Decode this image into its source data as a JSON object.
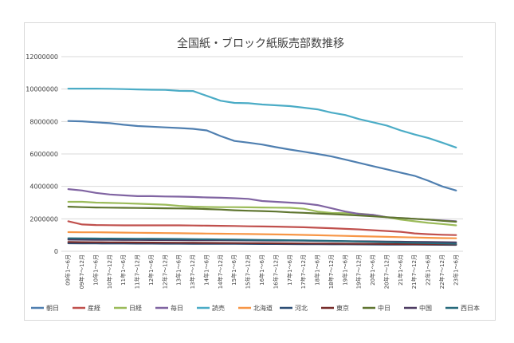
{
  "chart_data": {
    "type": "line",
    "title": "全国紙・ブロック紙販売部数推移",
    "xlabel": "",
    "ylabel": "",
    "ylim": [
      0,
      12000000
    ],
    "yticks": [
      0,
      2000000,
      4000000,
      6000000,
      8000000,
      10000000,
      12000000
    ],
    "ytick_labels": [
      "0",
      "2000000",
      "4000000",
      "6000000",
      "8000000",
      "10000000",
      "12000000"
    ],
    "grid": true,
    "legend_position": "bottom",
    "categories": [
      "09年1～6月",
      "09年7～12月",
      "10年1～6月",
      "10年7～12月",
      "11年1～6月",
      "11年7～12月",
      "12年1～6月",
      "12年7～12月",
      "13年1～6月",
      "13年7～12月",
      "14年1～6月",
      "14年7～12月",
      "15年1～6月",
      "15年7～12月",
      "16年1～6月",
      "16年7～12月",
      "17年1～6月",
      "17年7～12月",
      "18年1～6月",
      "18年7～12月",
      "19年1～6月",
      "19年7～12月",
      "20年1～6月",
      "20年7～12月",
      "21年1～6月",
      "21年7～12月",
      "22年1～6月",
      "22年7～12月",
      "23年1～6月"
    ],
    "series": [
      {
        "name": "朝日",
        "color": "#4f7fb0",
        "values": [
          8030000,
          8010000,
          7950000,
          7900000,
          7800000,
          7720000,
          7680000,
          7640000,
          7600000,
          7550000,
          7450000,
          7100000,
          6800000,
          6700000,
          6580000,
          6420000,
          6270000,
          6140000,
          6000000,
          5850000,
          5650000,
          5450000,
          5250000,
          5050000,
          4850000,
          4650000,
          4350000,
          4000000,
          3750000
        ]
      },
      {
        "name": "産経",
        "color": "#c0504d",
        "values": [
          1850000,
          1650000,
          1620000,
          1610000,
          1600000,
          1600000,
          1600000,
          1600000,
          1600000,
          1590000,
          1580000,
          1570000,
          1560000,
          1540000,
          1530000,
          1520000,
          1500000,
          1480000,
          1450000,
          1420000,
          1380000,
          1350000,
          1300000,
          1250000,
          1200000,
          1100000,
          1050000,
          1020000,
          1000000
        ]
      },
      {
        "name": "日経",
        "color": "#9bbb59",
        "values": [
          3050000,
          3050000,
          3000000,
          2980000,
          2960000,
          2930000,
          2900000,
          2870000,
          2800000,
          2750000,
          2730000,
          2720000,
          2720000,
          2710000,
          2700000,
          2690000,
          2680000,
          2620000,
          2450000,
          2360000,
          2350000,
          2320000,
          2250000,
          2100000,
          1950000,
          1850000,
          1750000,
          1680000,
          1600000
        ]
      },
      {
        "name": "毎日",
        "color": "#8064a2",
        "values": [
          3830000,
          3750000,
          3600000,
          3500000,
          3450000,
          3400000,
          3400000,
          3380000,
          3370000,
          3350000,
          3320000,
          3300000,
          3270000,
          3230000,
          3100000,
          3050000,
          3000000,
          2950000,
          2850000,
          2650000,
          2450000,
          2300000,
          2250000,
          2100000,
          2050000,
          2000000,
          1950000,
          1900000,
          1850000
        ]
      },
      {
        "name": "読売",
        "color": "#4bacc6",
        "values": [
          10030000,
          10030000,
          10030000,
          10020000,
          10000000,
          9980000,
          9960000,
          9950000,
          9890000,
          9880000,
          9580000,
          9280000,
          9150000,
          9130000,
          9050000,
          9000000,
          8950000,
          8850000,
          8750000,
          8550000,
          8400000,
          8150000,
          7950000,
          7750000,
          7450000,
          7200000,
          6980000,
          6700000,
          6400000
        ]
      },
      {
        "name": "北海道",
        "color": "#f79646",
        "values": [
          1180000,
          1170000,
          1170000,
          1160000,
          1150000,
          1140000,
          1130000,
          1120000,
          1110000,
          1100000,
          1090000,
          1080000,
          1070000,
          1060000,
          1050000,
          1040000,
          1030000,
          1010000,
          990000,
          970000,
          950000,
          930000,
          910000,
          890000,
          870000,
          850000,
          830000,
          810000,
          800000
        ]
      },
      {
        "name": "河北",
        "color": "#2c4d75",
        "values": [
          490000,
          485000,
          480000,
          478000,
          475000,
          472000,
          470000,
          468000,
          465000,
          462000,
          460000,
          458000,
          455000,
          452000,
          450000,
          446000,
          442000,
          438000,
          434000,
          430000,
          426000,
          422000,
          418000,
          414000,
          410000,
          406000,
          402000,
          398000,
          395000
        ]
      },
      {
        "name": "東京",
        "color": "#772c2a",
        "values": [
          570000,
          560000,
          555000,
          550000,
          545000,
          540000,
          535000,
          530000,
          525000,
          520000,
          515000,
          510000,
          505000,
          500000,
          495000,
          490000,
          485000,
          480000,
          475000,
          470000,
          465000,
          460000,
          455000,
          450000,
          445000,
          440000,
          435000,
          430000,
          425000
        ]
      },
      {
        "name": "中日",
        "color": "#5f7530",
        "values": [
          2750000,
          2720000,
          2700000,
          2690000,
          2680000,
          2670000,
          2660000,
          2650000,
          2640000,
          2630000,
          2600000,
          2570000,
          2530000,
          2500000,
          2480000,
          2450000,
          2400000,
          2370000,
          2330000,
          2290000,
          2250000,
          2210000,
          2160000,
          2100000,
          2050000,
          2000000,
          1950000,
          1880000,
          1820000
        ]
      },
      {
        "name": "中国",
        "color": "#4d3b62",
        "values": [
          720000,
          715000,
          710000,
          705000,
          700000,
          698000,
          695000,
          692000,
          690000,
          686000,
          682000,
          678000,
          674000,
          670000,
          665000,
          660000,
          654000,
          648000,
          640000,
          632000,
          624000,
          616000,
          608000,
          600000,
          590000,
          580000,
          570000,
          560000,
          550000
        ]
      },
      {
        "name": "西日本",
        "color": "#276a7c",
        "values": [
          800000,
          790000,
          785000,
          780000,
          775000,
          770000,
          765000,
          760000,
          755000,
          750000,
          740000,
          730000,
          720000,
          710000,
          700000,
          690000,
          680000,
          670000,
          655000,
          640000,
          620000,
          600000,
          580000,
          560000,
          540000,
          520000,
          500000,
          480000,
          460000
        ]
      }
    ]
  }
}
